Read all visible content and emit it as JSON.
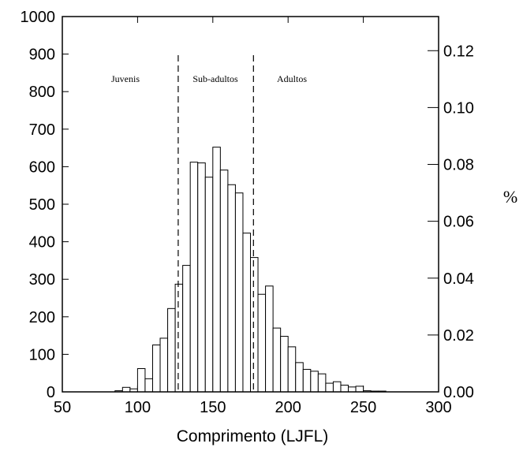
{
  "chart_data": {
    "type": "bar",
    "xlabel": "Comprimento (LJFL)",
    "ylabel": "",
    "y2label": "%",
    "xlim": [
      50,
      300
    ],
    "ylim": [
      0,
      1000
    ],
    "y2lim": [
      0,
      0.132
    ],
    "xticks": [
      "50",
      "100",
      "150",
      "200",
      "250",
      "300"
    ],
    "yticks": [
      "0",
      "100",
      "200",
      "300",
      "400",
      "500",
      "600",
      "700",
      "800",
      "900",
      "1000"
    ],
    "y2ticks": [
      "0.00",
      "0.02",
      "0.04",
      "0.06",
      "0.08",
      "0.10",
      "0.12"
    ],
    "bin_width": 5,
    "bins_x": [
      85,
      90,
      95,
      100,
      105,
      110,
      115,
      120,
      125,
      130,
      135,
      140,
      145,
      150,
      155,
      160,
      165,
      170,
      175,
      180,
      185,
      190,
      195,
      200,
      205,
      210,
      215,
      220,
      225,
      230,
      235,
      240,
      245,
      250,
      255,
      260
    ],
    "values": [
      3,
      12,
      8,
      62,
      35,
      125,
      143,
      222,
      287,
      337,
      612,
      610,
      572,
      652,
      591,
      552,
      530,
      423,
      358,
      260,
      282,
      170,
      148,
      120,
      78,
      60,
      55,
      48,
      23,
      27,
      18,
      13,
      15,
      3,
      2,
      2
    ],
    "dividers": [
      127,
      177
    ],
    "regions": [
      "Juvenis",
      "Sub-adultos",
      "Adultos"
    ],
    "grid": false
  }
}
